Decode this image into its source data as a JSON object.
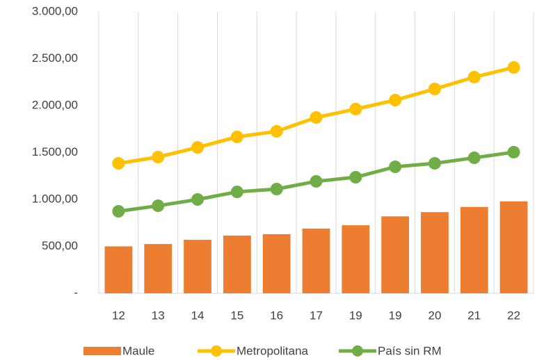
{
  "chart_data": {
    "type": "combo",
    "categories": [
      "12",
      "13",
      "14",
      "15",
      "16",
      "17",
      "19",
      "19",
      "20",
      "21",
      "22"
    ],
    "series": [
      {
        "name": "Maule",
        "type": "bar",
        "color": "#ED7D31",
        "values": [
          500,
          525,
          570,
          615,
          630,
          690,
          725,
          820,
          865,
          920,
          980
        ]
      },
      {
        "name": "Metropolitana",
        "type": "line",
        "color": "#FFC000",
        "values": [
          1385,
          1452,
          1555,
          1667,
          1726,
          1874,
          1963,
          2059,
          2178,
          2304,
          2407
        ]
      },
      {
        "name": "País sin RM",
        "type": "line",
        "color": "#70AD47",
        "values": [
          874,
          933,
          1000,
          1081,
          1111,
          1193,
          1237,
          1348,
          1385,
          1444,
          1504
        ]
      }
    ],
    "ylim": [
      0,
      3000
    ],
    "yticks": [
      {
        "value": 0,
        "label": "-"
      },
      {
        "value": 500,
        "label": "500,00"
      },
      {
        "value": 1000,
        "label": "1.000,00"
      },
      {
        "value": 1500,
        "label": "1.500,00"
      },
      {
        "value": 2000,
        "label": "2.000,00"
      },
      {
        "value": 2500,
        "label": "2.500,00"
      },
      {
        "value": 3000,
        "label": "3.000,00"
      }
    ],
    "grid": "vertical",
    "legend": "bottom"
  }
}
